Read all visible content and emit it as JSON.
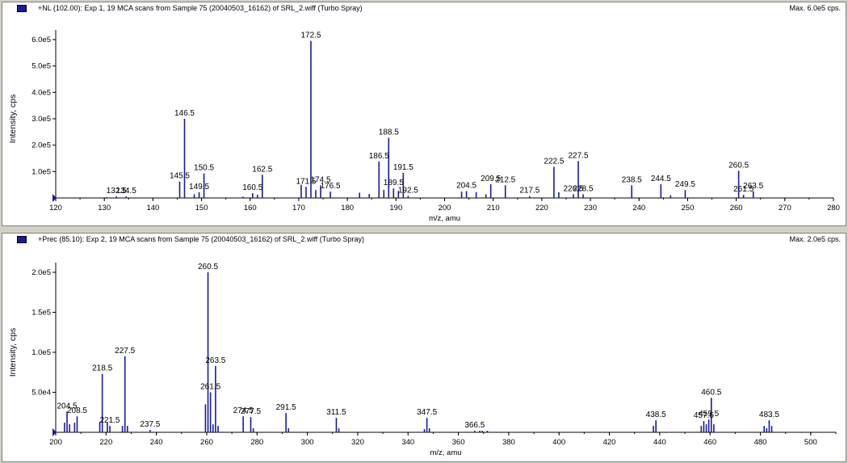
{
  "panels": [
    {
      "title": "+NL (102.00): Exp 1, 19 MCA scans from Sample 75 (20040503_16162) of SRL_2.wiff (Turbo Spray)",
      "max_label": "Max. 6.0e5 cps."
    },
    {
      "title": "+Prec (85.10): Exp 2, 19 MCA scans from Sample 75 (20040503_16162) of SRL_2.wiff (Turbo Spray)",
      "max_label": "Max. 2.0e5 cps."
    }
  ],
  "colors": {
    "peak": "#1a1aa0",
    "axis": "#000000",
    "background": "#ffffff",
    "frame": "#d4d0c8"
  },
  "chart_data": [
    {
      "type": "bar",
      "xlabel": "m/z, amu",
      "ylabel": "Intensity, cps",
      "xlim": [
        120,
        280
      ],
      "ylim": [
        0,
        600000
      ],
      "xticks": [
        120,
        130,
        140,
        150,
        160,
        170,
        180,
        190,
        200,
        210,
        220,
        230,
        240,
        250,
        260,
        270,
        280
      ],
      "yticks": [
        {
          "value": 100000,
          "label": "1.0e5"
        },
        {
          "value": 200000,
          "label": "2.0e5"
        },
        {
          "value": 300000,
          "label": "3.0e5"
        },
        {
          "value": 400000,
          "label": "4.0e5"
        },
        {
          "value": 500000,
          "label": "5.0e5"
        },
        {
          "value": 600000,
          "label": "6.0e5"
        }
      ],
      "peaks": [
        {
          "x": 130.5,
          "y": 3000
        },
        {
          "x": 132.5,
          "y": 6000
        },
        {
          "x": 134.5,
          "y": 6000
        },
        {
          "x": 145.5,
          "y": 62000
        },
        {
          "x": 146.5,
          "y": 300000
        },
        {
          "x": 148.5,
          "y": 14000
        },
        {
          "x": 149.5,
          "y": 22000
        },
        {
          "x": 150.5,
          "y": 93000
        },
        {
          "x": 158.5,
          "y": 5000
        },
        {
          "x": 160.5,
          "y": 18000
        },
        {
          "x": 161.5,
          "y": 12000
        },
        {
          "x": 162.5,
          "y": 88000
        },
        {
          "x": 170.5,
          "y": 50000
        },
        {
          "x": 171.5,
          "y": 42000
        },
        {
          "x": 172.5,
          "y": 595000
        },
        {
          "x": 173.5,
          "y": 30000
        },
        {
          "x": 174.5,
          "y": 48000
        },
        {
          "x": 176.5,
          "y": 24000
        },
        {
          "x": 182.5,
          "y": 20000
        },
        {
          "x": 184.5,
          "y": 15000
        },
        {
          "x": 186.5,
          "y": 138000
        },
        {
          "x": 187.5,
          "y": 30000
        },
        {
          "x": 188.5,
          "y": 228000
        },
        {
          "x": 189.5,
          "y": 36000
        },
        {
          "x": 190.5,
          "y": 27000
        },
        {
          "x": 191.5,
          "y": 95000
        },
        {
          "x": 192.5,
          "y": 8000
        },
        {
          "x": 203.5,
          "y": 24000
        },
        {
          "x": 204.5,
          "y": 26000
        },
        {
          "x": 206.5,
          "y": 22000
        },
        {
          "x": 208.5,
          "y": 14000
        },
        {
          "x": 209.5,
          "y": 52000
        },
        {
          "x": 212.5,
          "y": 48000
        },
        {
          "x": 217.5,
          "y": 7000
        },
        {
          "x": 222.5,
          "y": 118000
        },
        {
          "x": 223.5,
          "y": 22000
        },
        {
          "x": 226.5,
          "y": 14000
        },
        {
          "x": 227.5,
          "y": 140000
        },
        {
          "x": 228.5,
          "y": 14000
        },
        {
          "x": 238.5,
          "y": 48000
        },
        {
          "x": 244.5,
          "y": 52000
        },
        {
          "x": 246.5,
          "y": 10000
        },
        {
          "x": 249.5,
          "y": 30000
        },
        {
          "x": 260.5,
          "y": 103000
        },
        {
          "x": 261.5,
          "y": 12000
        },
        {
          "x": 263.5,
          "y": 25000
        }
      ],
      "labels": [
        {
          "text": "132.5",
          "x": 132.5,
          "y": 6000
        },
        {
          "text": "134.5",
          "x": 134.5,
          "y": 6000
        },
        {
          "text": "145.5",
          "x": 145.5,
          "y": 62000
        },
        {
          "text": "146.5",
          "x": 146.5,
          "y": 300000
        },
        {
          "text": "149.5",
          "x": 149.5,
          "y": 22000
        },
        {
          "text": "150.5",
          "x": 150.5,
          "y": 93000
        },
        {
          "text": "160.5",
          "x": 160.5,
          "y": 18000
        },
        {
          "text": "162.5",
          "x": 162.5,
          "y": 88000
        },
        {
          "text": "171.5",
          "x": 171.5,
          "y": 42000
        },
        {
          "text": "172.5",
          "x": 172.5,
          "y": 595000
        },
        {
          "text": "174.5",
          "x": 174.5,
          "y": 48000
        },
        {
          "text": "176.5",
          "x": 176.5,
          "y": 24000
        },
        {
          "text": "186.5",
          "x": 186.5,
          "y": 138000
        },
        {
          "text": "188.5",
          "x": 188.5,
          "y": 228000
        },
        {
          "text": "189.5",
          "x": 189.5,
          "y": 36000
        },
        {
          "text": "191.5",
          "x": 191.5,
          "y": 95000
        },
        {
          "text": "192.5",
          "x": 192.5,
          "y": 8000
        },
        {
          "text": "204.5",
          "x": 204.5,
          "y": 26000
        },
        {
          "text": "209.5",
          "x": 209.5,
          "y": 52000
        },
        {
          "text": "212.5",
          "x": 212.5,
          "y": 48000
        },
        {
          "text": "217.5",
          "x": 217.5,
          "y": 7000
        },
        {
          "text": "222.5",
          "x": 222.5,
          "y": 118000
        },
        {
          "text": "226.5",
          "x": 226.5,
          "y": 14000
        },
        {
          "text": "227.5",
          "x": 227.5,
          "y": 140000
        },
        {
          "text": "228.5",
          "x": 228.5,
          "y": 14000
        },
        {
          "text": "238.5",
          "x": 238.5,
          "y": 48000
        },
        {
          "text": "244.5",
          "x": 244.5,
          "y": 52000
        },
        {
          "text": "249.5",
          "x": 249.5,
          "y": 30000
        },
        {
          "text": "260.5",
          "x": 260.5,
          "y": 103000
        },
        {
          "text": "261.5",
          "x": 261.5,
          "y": 12000
        },
        {
          "text": "263.5",
          "x": 263.5,
          "y": 25000
        }
      ]
    },
    {
      "type": "bar",
      "xlabel": "m/z, amu",
      "ylabel": "Intensity, cps",
      "xlim": [
        200,
        510
      ],
      "ylim": [
        0,
        200000
      ],
      "xticks": [
        200,
        220,
        240,
        260,
        280,
        300,
        320,
        340,
        360,
        380,
        400,
        420,
        440,
        460,
        480,
        500
      ],
      "yticks": [
        {
          "value": 50000,
          "label": "5.0e4"
        },
        {
          "value": 100000,
          "label": "1.0e5"
        },
        {
          "value": 150000,
          "label": "1.5e5"
        },
        {
          "value": 200000,
          "label": "2.0e5"
        }
      ],
      "peaks": [
        {
          "x": 203.5,
          "y": 12000
        },
        {
          "x": 204.5,
          "y": 26000
        },
        {
          "x": 205.5,
          "y": 10000
        },
        {
          "x": 207.5,
          "y": 12000
        },
        {
          "x": 208.5,
          "y": 20000
        },
        {
          "x": 217.5,
          "y": 13000
        },
        {
          "x": 218.5,
          "y": 73000
        },
        {
          "x": 220.5,
          "y": 12000
        },
        {
          "x": 221.5,
          "y": 8000
        },
        {
          "x": 226.5,
          "y": 8000
        },
        {
          "x": 227.5,
          "y": 95000
        },
        {
          "x": 228.5,
          "y": 8000
        },
        {
          "x": 237.5,
          "y": 3000
        },
        {
          "x": 259.5,
          "y": 35000
        },
        {
          "x": 260.5,
          "y": 200000
        },
        {
          "x": 261.5,
          "y": 50000
        },
        {
          "x": 262.5,
          "y": 10000
        },
        {
          "x": 263.5,
          "y": 83000
        },
        {
          "x": 264.5,
          "y": 8000
        },
        {
          "x": 274.5,
          "y": 20000
        },
        {
          "x": 277.5,
          "y": 19000
        },
        {
          "x": 278.5,
          "y": 5000
        },
        {
          "x": 291.5,
          "y": 24000
        },
        {
          "x": 292.5,
          "y": 5000
        },
        {
          "x": 311.5,
          "y": 18000
        },
        {
          "x": 312.5,
          "y": 5000
        },
        {
          "x": 346.5,
          "y": 4000
        },
        {
          "x": 347.5,
          "y": 18000
        },
        {
          "x": 348.5,
          "y": 5000
        },
        {
          "x": 366.5,
          "y": 2000
        },
        {
          "x": 368.5,
          "y": 2000
        },
        {
          "x": 369.5,
          "y": 2000
        },
        {
          "x": 371.5,
          "y": 2000
        },
        {
          "x": 437.5,
          "y": 8000
        },
        {
          "x": 438.5,
          "y": 15000
        },
        {
          "x": 456.5,
          "y": 8000
        },
        {
          "x": 457.5,
          "y": 14000
        },
        {
          "x": 458.5,
          "y": 10000
        },
        {
          "x": 459.5,
          "y": 16000
        },
        {
          "x": 460.5,
          "y": 43000
        },
        {
          "x": 461.5,
          "y": 10000
        },
        {
          "x": 481.5,
          "y": 8000
        },
        {
          "x": 482.5,
          "y": 5000
        },
        {
          "x": 483.5,
          "y": 15000
        },
        {
          "x": 484.5,
          "y": 8000
        }
      ],
      "labels": [
        {
          "text": "204.5",
          "x": 204.5,
          "y": 26000
        },
        {
          "text": "208.5",
          "x": 208.5,
          "y": 20000
        },
        {
          "text": "218.5",
          "x": 218.5,
          "y": 73000
        },
        {
          "text": "221.5",
          "x": 221.5,
          "y": 8000
        },
        {
          "text": "227.5",
          "x": 227.5,
          "y": 95000
        },
        {
          "text": "237.5",
          "x": 237.5,
          "y": 3000
        },
        {
          "text": "260.5",
          "x": 260.5,
          "y": 200000
        },
        {
          "text": "261.5",
          "x": 261.5,
          "y": 50000
        },
        {
          "text": "263.5",
          "x": 263.5,
          "y": 83000
        },
        {
          "text": "274.5",
          "x": 274.5,
          "y": 20000
        },
        {
          "text": "277.5",
          "x": 277.5,
          "y": 19000
        },
        {
          "text": "291.5",
          "x": 291.5,
          "y": 24000
        },
        {
          "text": "311.5",
          "x": 311.5,
          "y": 18000
        },
        {
          "text": "347.5",
          "x": 347.5,
          "y": 18000
        },
        {
          "text": "366.5",
          "x": 366.5,
          "y": 2000
        },
        {
          "text": "438.5",
          "x": 438.5,
          "y": 15000
        },
        {
          "text": "457.5",
          "x": 457.5,
          "y": 14000
        },
        {
          "text": "459.5",
          "x": 459.5,
          "y": 16000
        },
        {
          "text": "460.5",
          "x": 460.5,
          "y": 43000
        },
        {
          "text": "483.5",
          "x": 483.5,
          "y": 15000
        }
      ]
    }
  ]
}
